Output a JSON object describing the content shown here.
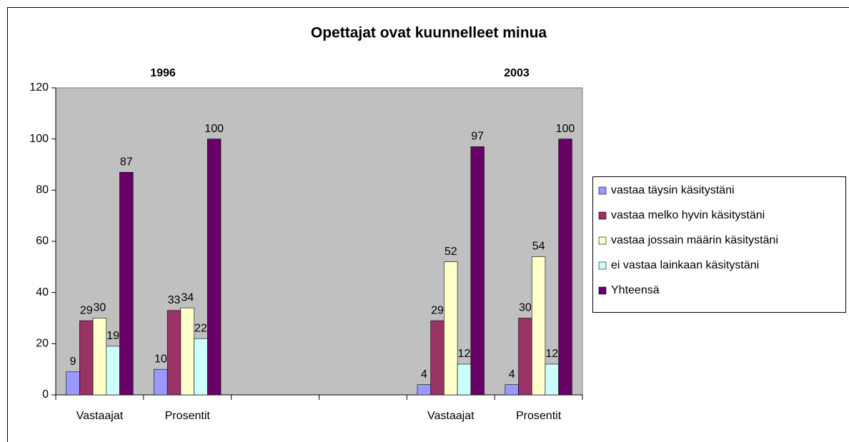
{
  "chart_data": {
    "type": "bar",
    "title": "Opettajat ovat kuunnelleet minua",
    "annotations": [
      "1996",
      "2003"
    ],
    "categories": [
      "Vastaajat",
      "Prosentit",
      null,
      null,
      "Vastaajat",
      "Prosentit"
    ],
    "series": [
      {
        "name": "vastaa täysin käsitystäni",
        "color": "#9999ff",
        "values": [
          9,
          10,
          null,
          null,
          4,
          4
        ]
      },
      {
        "name": "vastaa melko hyvin käsitystäni",
        "color": "#993366",
        "values": [
          29,
          33,
          null,
          null,
          29,
          30
        ]
      },
      {
        "name": "vastaa jossain määrin käsitystäni",
        "color": "#ffffcc",
        "values": [
          30,
          34,
          null,
          null,
          52,
          54
        ]
      },
      {
        "name": "ei vastaa lainkaan käsitystäni",
        "color": "#ccffff",
        "values": [
          19,
          22,
          null,
          null,
          12,
          12
        ]
      },
      {
        "name": "Yhteensä",
        "color": "#660066",
        "values": [
          87,
          100,
          null,
          null,
          97,
          100
        ]
      }
    ],
    "ylim": [
      0,
      120
    ],
    "yticks": [
      0,
      20,
      40,
      60,
      80,
      100,
      120
    ],
    "grid": false,
    "legend": "right",
    "plot_background": "#c0c0c0"
  }
}
